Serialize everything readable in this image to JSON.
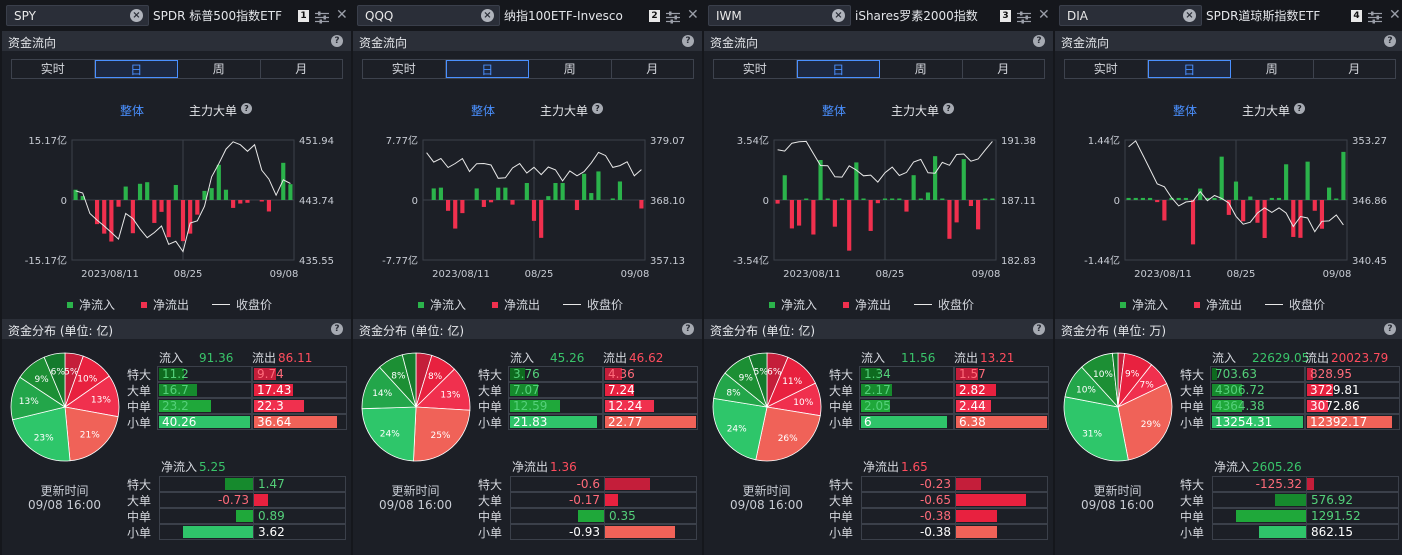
{
  "colors": {
    "inflow": "#2bb34b",
    "outflow": "#f0304e",
    "price_line": "#e8e8e8",
    "accent": "#4a90ff"
  },
  "common": {
    "flow_section_title": "资金流向",
    "tabs": [
      "实时",
      "日",
      "周",
      "月"
    ],
    "active_tab": "日",
    "mode_all": "整体",
    "mode_main": "主力大单",
    "legend": {
      "inflow": "净流入",
      "outflow": "净流出",
      "price": "收盘价"
    },
    "rows": [
      "特大",
      "大单",
      "中单",
      "小单"
    ],
    "in_label": "流入",
    "out_label": "流出",
    "update_label": "更新时间",
    "update_time": "09/08 16:00"
  },
  "panels": [
    {
      "symbol": "SPY",
      "name": "SPDR 标普500指数ETF",
      "num": "1",
      "dist_title": "资金分布 (单位: 亿)",
      "chart_data": {
        "type": "bar",
        "y_left": {
          "top": "15.17亿",
          "mid": "0",
          "bottom": "-15.17亿",
          "max": 15.17
        },
        "y_right": {
          "top": "451.94",
          "mid": "443.74",
          "bottom": "435.55",
          "min": 435.55,
          "max": 451.94
        },
        "x_ticks": [
          "2023/08/11",
          "08/25",
          "09/08"
        ],
        "flows": [
          2.6,
          1.0,
          0,
          -6.1,
          -8.5,
          -10.5,
          -1.7,
          3.4,
          -8.4,
          4.1,
          4.5,
          -5.8,
          -3.0,
          -9.4,
          3.8,
          -10.4,
          -8.5,
          -3.7,
          2.3,
          3.0,
          8.9,
          2.6,
          -2.0,
          -0.9,
          -0.7,
          0,
          -0.2,
          -2.9,
          0,
          9.4,
          4.0
        ],
        "prices": [
          445.0,
          444.7,
          441.9,
          441.0,
          440.2,
          439.3,
          438.4,
          441.9,
          441.2,
          439.8,
          438.6,
          439.3,
          440.2,
          437.7,
          438.1,
          436.7,
          440.6,
          440.9,
          442.9,
          446.9,
          448.7,
          450.7,
          451.7,
          451.3,
          450.4,
          451.3,
          447.8,
          446.6,
          444.4,
          446.5,
          446.0
        ]
      },
      "dist": {
        "in_total": "91.36",
        "out_total": "86.11",
        "in": [
          "11.2",
          "16.7",
          "23.2",
          "40.26"
        ],
        "out": [
          "9.74",
          "17.43",
          "22.3",
          "36.64"
        ],
        "in_vals": [
          11.2,
          16.7,
          23.2,
          40.26
        ],
        "out_vals": [
          9.74,
          17.43,
          22.3,
          36.64
        ],
        "pie_labels": [
          "5%",
          "10%",
          "13%",
          "21%",
          "23%",
          "13%",
          "9%",
          "6%"
        ]
      },
      "net": {
        "title": "净流入",
        "total": "5.25",
        "total_sign": 1,
        "values": [
          "1.47",
          "-0.73",
          "0.89",
          "3.62"
        ],
        "nums": [
          1.47,
          -0.73,
          0.89,
          3.62
        ]
      }
    },
    {
      "symbol": "QQQ",
      "name": "纳指100ETF-Invesco",
      "num": "2",
      "dist_title": "资金分布 (单位: 亿)",
      "chart_data": {
        "type": "bar",
        "y_left": {
          "top": "7.77亿",
          "mid": "0",
          "bottom": "-7.77亿",
          "max": 7.77
        },
        "y_right": {
          "top": "379.07",
          "mid": "368.10",
          "bottom": "357.13",
          "min": 357.13,
          "max": 379.07
        },
        "x_ticks": [
          "2023/08/11",
          "08/25",
          "09/08"
        ],
        "flows": [
          0,
          1.5,
          1.6,
          -1.4,
          -3.7,
          -1.7,
          0,
          1.5,
          -0.9,
          -0.3,
          1.6,
          1.6,
          -0.6,
          0,
          2.2,
          -2.7,
          -4.9,
          0.5,
          2.2,
          2.2,
          0,
          -1.3,
          3.4,
          0.9,
          3.7,
          0,
          0.2,
          2.4,
          0,
          0,
          -1.1
        ]
      },
      "dist": {
        "in_total": "45.26",
        "out_total": "46.62",
        "in": [
          "3.76",
          "7.07",
          "12.59",
          "21.83"
        ],
        "out": [
          "4.36",
          "7.24",
          "12.24",
          "22.77"
        ],
        "in_vals": [
          3.76,
          7.07,
          12.59,
          21.83
        ],
        "out_vals": [
          4.36,
          7.24,
          12.24,
          22.77
        ],
        "pie_labels": [
          "",
          "8%",
          "13%",
          "25%",
          "24%",
          "14%",
          "8%",
          ""
        ]
      },
      "net": {
        "title": "净流出",
        "total": "1.36",
        "total_sign": -1,
        "values": [
          "-0.6",
          "-0.17",
          "0.35",
          "-0.93"
        ],
        "nums": [
          -0.6,
          -0.17,
          0.35,
          -0.93
        ]
      }
    },
    {
      "symbol": "IWM",
      "name": "iShares罗素2000指数",
      "num": "3",
      "dist_title": "资金分布 (单位: 亿)",
      "chart_data": {
        "type": "bar",
        "y_left": {
          "top": "3.54亿",
          "mid": "0",
          "bottom": "-3.54亿",
          "max": 3.54
        },
        "y_right": {
          "top": "191.38",
          "mid": "187.11",
          "bottom": "182.83",
          "min": 182.83,
          "max": 191.38
        }
      },
      "dist": {
        "in_total": "11.56",
        "out_total": "13.21",
        "in": [
          "1.34",
          "2.17",
          "2.05",
          "6"
        ],
        "out": [
          "1.57",
          "2.82",
          "2.44",
          "6.38"
        ],
        "in_vals": [
          1.34,
          2.17,
          2.05,
          6
        ],
        "out_vals": [
          1.57,
          2.82,
          2.44,
          6.38
        ],
        "pie_labels": [
          "6%",
          "11%",
          "10%",
          "26%",
          "24%",
          "8%",
          "9%",
          "5%"
        ]
      },
      "net": {
        "title": "净流出",
        "total": "1.65",
        "total_sign": -1,
        "values": [
          "-0.23",
          "-0.65",
          "-0.38",
          "-0.38"
        ],
        "nums": [
          -0.23,
          -0.65,
          -0.38,
          -0.38
        ]
      }
    },
    {
      "symbol": "DIA",
      "name": "SPDR道琼斯指数ETF",
      "num": "4",
      "dist_title": "资金分布 (单位: 万)",
      "chart_data": {
        "type": "bar",
        "y_left": {
          "top": "1.44亿",
          "mid": "0",
          "bottom": "-1.44亿",
          "max": 1.44
        },
        "y_right": {
          "top": "353.27",
          "mid": "346.86",
          "bottom": "340.45",
          "min": 340.45,
          "max": 353.27
        }
      },
      "dist": {
        "in_total": "22629.05",
        "out_total": "20023.79",
        "in": [
          "703.63",
          "4306.72",
          "4364.38",
          "13254.31"
        ],
        "out": [
          "828.95",
          "3729.81",
          "3072.86",
          "12392.17"
        ],
        "in_vals": [
          703.63,
          4306.72,
          4364.38,
          13254.31
        ],
        "out_vals": [
          828.95,
          3729.81,
          3072.86,
          12392.17
        ],
        "pie_labels": [
          "",
          "9%",
          "7%",
          "29%",
          "31%",
          "10%",
          "10%",
          ""
        ]
      },
      "net": {
        "title": "净流入",
        "total": "2605.26",
        "total_sign": 1,
        "values": [
          "-125.32",
          "576.92",
          "1291.52",
          "862.15"
        ],
        "nums": [
          -125.32,
          576.92,
          1291.52,
          862.15
        ]
      }
    }
  ]
}
